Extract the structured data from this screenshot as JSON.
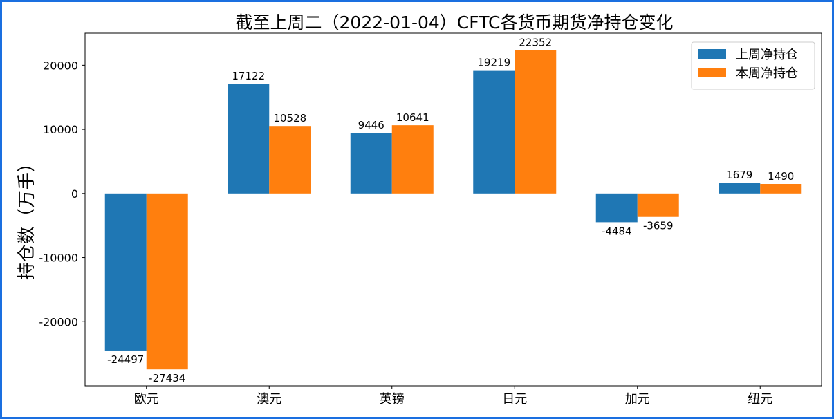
{
  "chart_data": {
    "type": "bar",
    "title": "截至上周二（2022-01-04）CFTC各货币期货净持仓变化",
    "xlabel": "",
    "ylabel": "持仓数（万手）",
    "categories": [
      "欧元",
      "澳元",
      "英镑",
      "日元",
      "加元",
      "纽元"
    ],
    "series": [
      {
        "name": "上周净持仓",
        "color": "#1f77b4",
        "values": [
          -24497,
          17122,
          9446,
          19219,
          -4484,
          1679
        ]
      },
      {
        "name": "本周净持仓",
        "color": "#ff7f0e",
        "values": [
          -27434,
          10528,
          10641,
          22352,
          -3659,
          1490
        ]
      }
    ],
    "ylim": [
      -30000,
      25000
    ],
    "yticks": [
      -20000,
      -10000,
      0,
      10000,
      20000
    ],
    "grid": false,
    "legend": "top-right"
  }
}
